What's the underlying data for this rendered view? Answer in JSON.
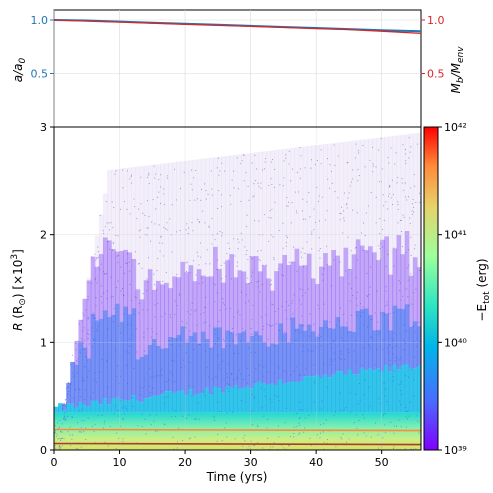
{
  "colors": {
    "a_series": "#1f77b4",
    "mass_series": "#d62728",
    "grid": "#d9d9d9",
    "colormap": [
      "#7f00ff",
      "#4a6bff",
      "#00b5e8",
      "#2fe6c0",
      "#9cff9c",
      "#e6d46b",
      "#ff8a3a",
      "#ff0000"
    ]
  },
  "chart_data": [
    {
      "type": "line",
      "xlim": [
        0,
        56
      ],
      "ylim": [
        0.0,
        1.0
      ],
      "left_ylabel": "a/a0",
      "right_ylabel": "Mb/Menv",
      "left_yticks": [
        "1.0",
        "0.5"
      ],
      "right_yticks": [
        "1.0",
        "0.5"
      ],
      "grid": true,
      "series": [
        {
          "color_key": "a_series",
          "x": [
            0,
            5,
            10,
            15,
            20,
            25,
            30,
            35,
            40,
            45,
            50,
            56
          ],
          "y": [
            1.0,
            0.995,
            0.985,
            0.975,
            0.965,
            0.955,
            0.945,
            0.935,
            0.925,
            0.915,
            0.905,
            0.895
          ]
        },
        {
          "color_key": "mass_series",
          "x": [
            0,
            5,
            10,
            15,
            20,
            25,
            30,
            35,
            40,
            45,
            50,
            56
          ],
          "y": [
            1.0,
            0.99,
            0.98,
            0.97,
            0.96,
            0.95,
            0.94,
            0.93,
            0.92,
            0.91,
            0.895,
            0.875
          ]
        }
      ]
    },
    {
      "type": "heatmap",
      "xlabel": "Time (yrs)",
      "ylabel": "R (R⊙) [×10³]",
      "xlim": [
        0,
        56
      ],
      "ylim": [
        0,
        3
      ],
      "xticks": [
        0,
        10,
        20,
        30,
        40,
        50
      ],
      "yticks": [
        0,
        1,
        2,
        3
      ],
      "grid": true,
      "colorbar": {
        "label": "−Etot (erg)",
        "scale": "log",
        "range": [
          1e+39,
          1e+42
        ],
        "tick_labels": [
          "10⁴²",
          "10⁴¹",
          "10⁴⁰",
          "10³⁹"
        ]
      },
      "lines": [
        {
          "name": "",
          "x": [
            0,
            56
          ],
          "y": [
            0.19,
            0.18
          ],
          "color": "#ff8a3a"
        },
        {
          "name": "",
          "x": [
            0,
            56
          ],
          "y": [
            0.06,
            0.05
          ],
          "color": "#b03a2e"
        }
      ]
    }
  ]
}
